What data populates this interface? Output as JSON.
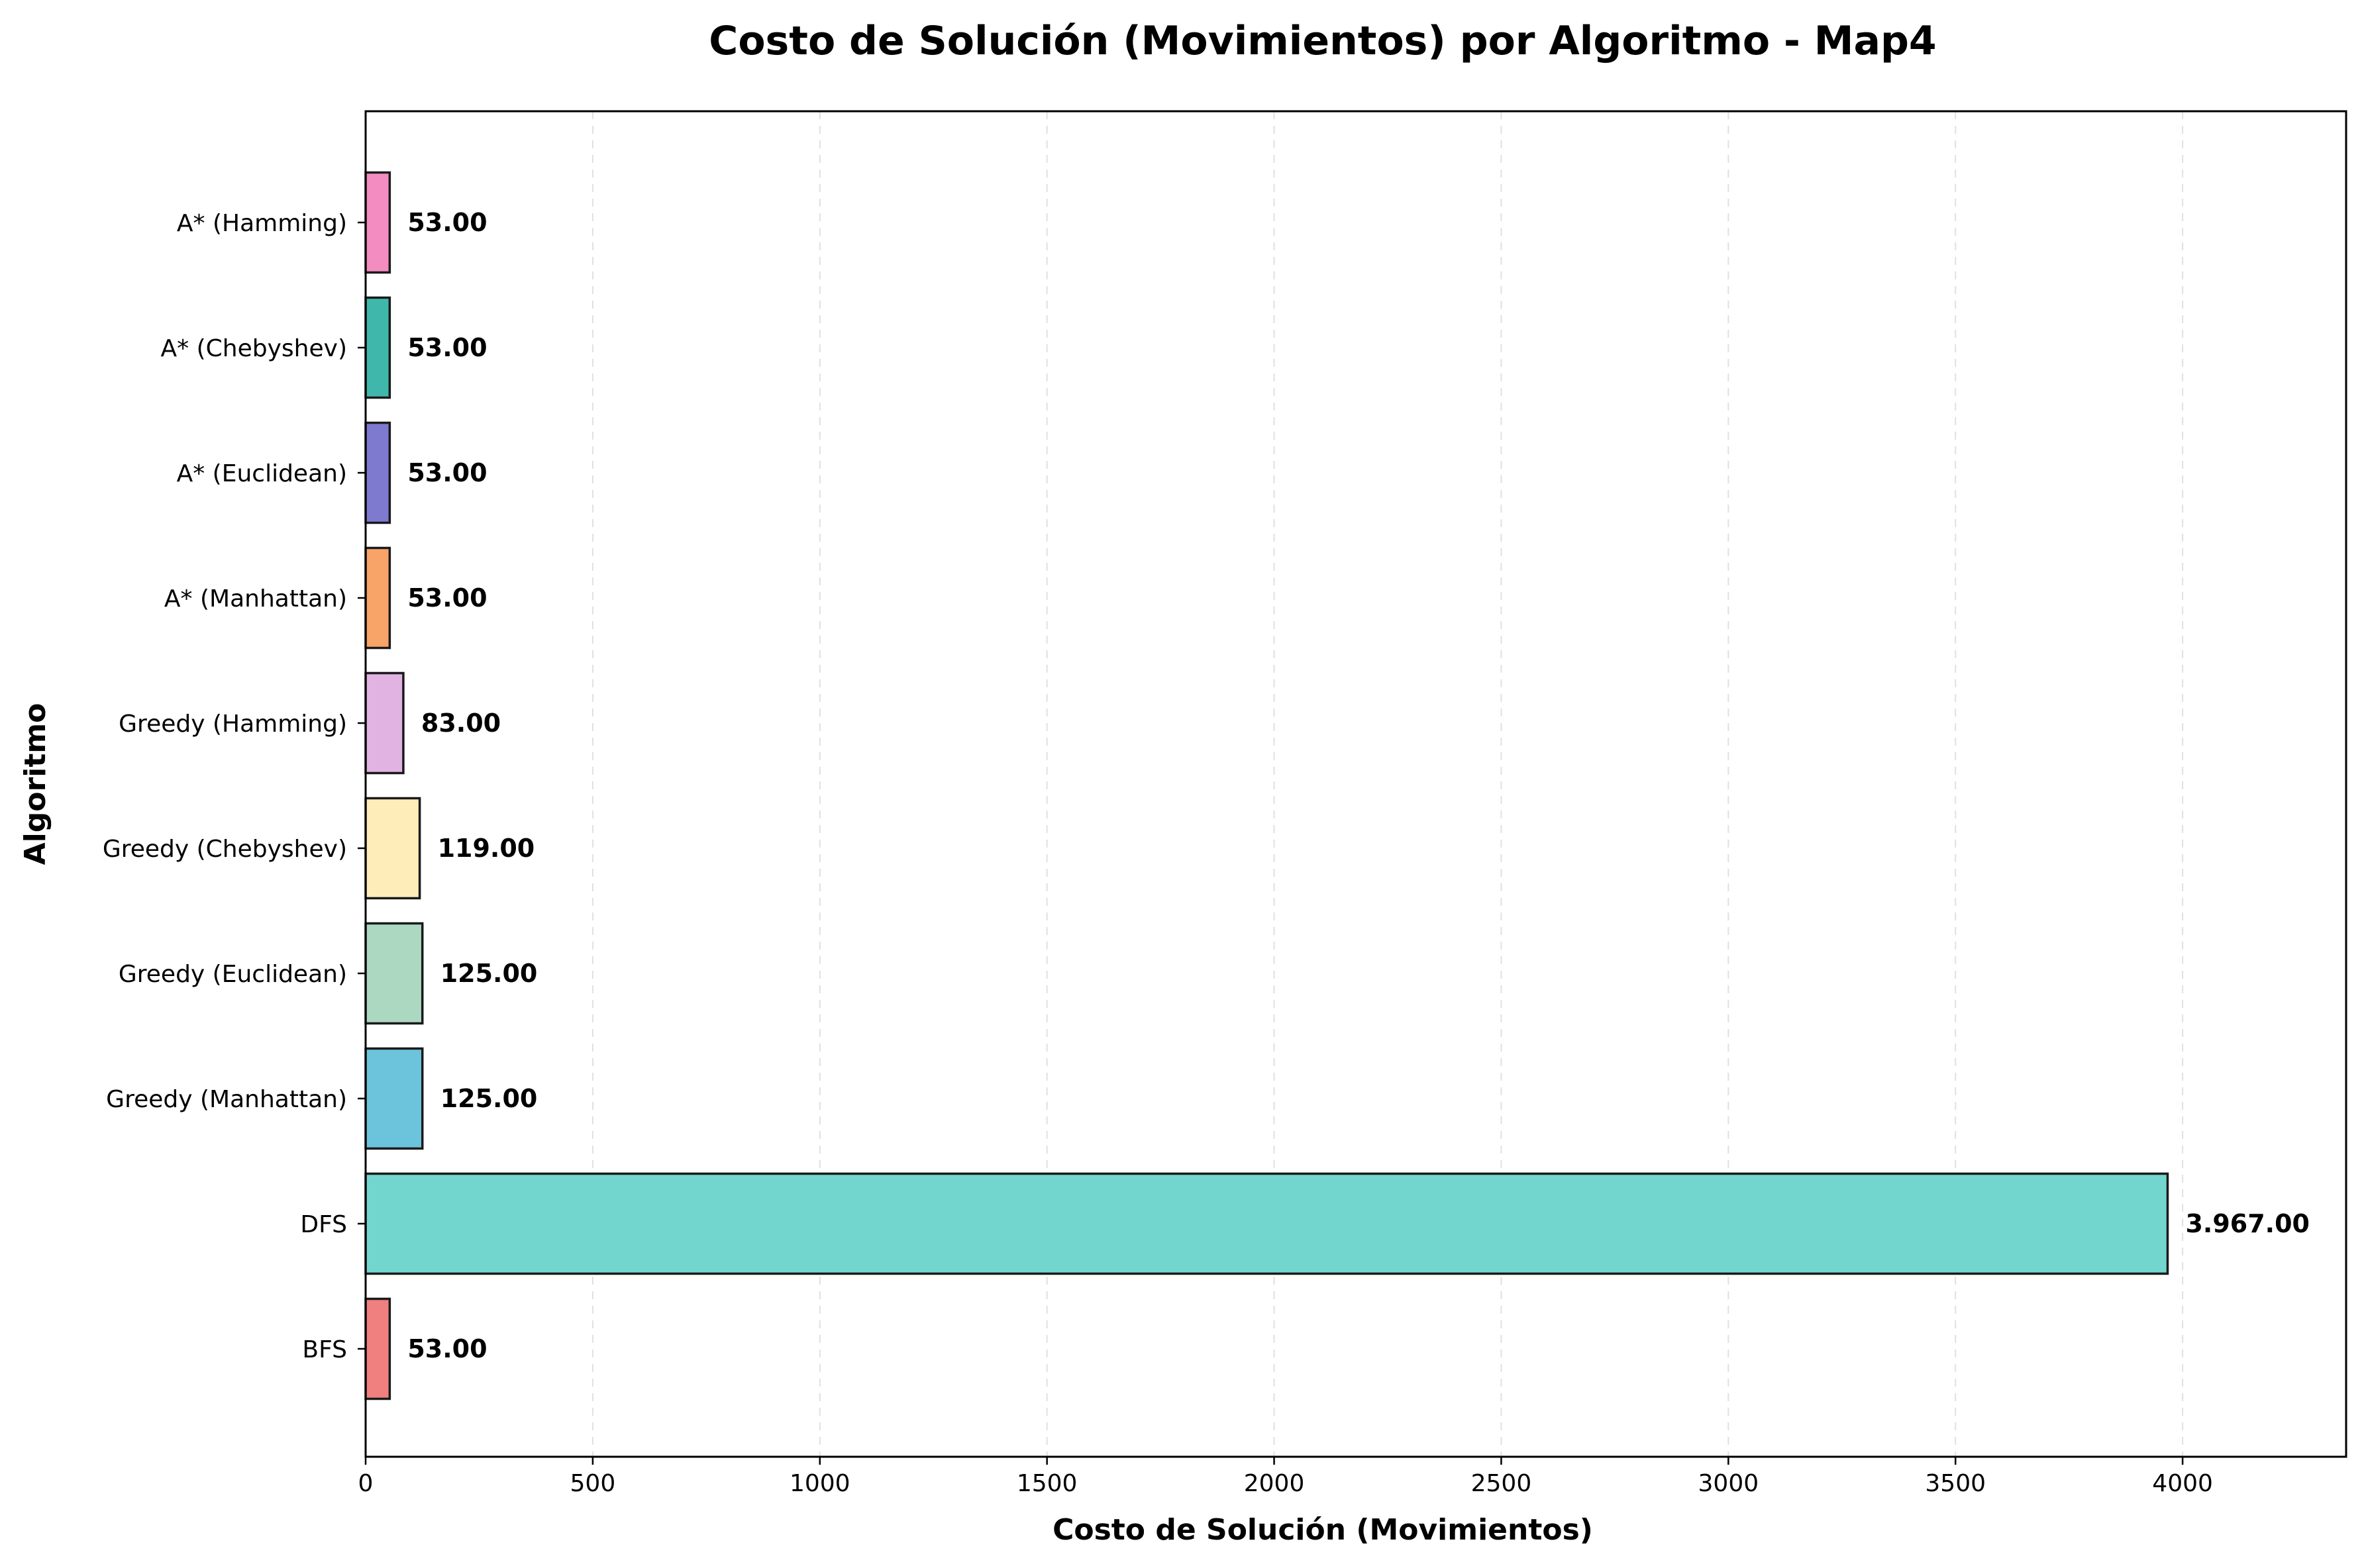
{
  "chart_data": {
    "type": "bar",
    "orientation": "horizontal",
    "title": "Costo de Solución (Movimientos) por Algoritmo - Map4",
    "xlabel": "Costo de Solución (Movimientos)",
    "ylabel": "Algoritmo",
    "xlim": [
      0,
      4360
    ],
    "xticks": [
      0,
      500,
      1000,
      1500,
      2000,
      2500,
      3000,
      3500,
      4000
    ],
    "grid": "x-dashed",
    "categories": [
      "BFS",
      "DFS",
      "Greedy (Manhattan)",
      "Greedy (Euclidean)",
      "Greedy (Chebyshev)",
      "Greedy (Hamming)",
      "A* (Manhattan)",
      "A* (Euclidean)",
      "A* (Chebyshev)",
      "A* (Hamming)"
    ],
    "values": [
      53,
      3967,
      125,
      125,
      119,
      83,
      53,
      53,
      53,
      53
    ],
    "value_labels": [
      "53.00",
      "3.967.00",
      "125.00",
      "125.00",
      "119.00",
      "83.00",
      "53.00",
      "53.00",
      "53.00",
      "53.00"
    ],
    "colors": [
      "#f07f80",
      "#72d6cf",
      "#6cc4dc",
      "#acd8c2",
      "#feedb8",
      "#e0b3e3",
      "#f8a367",
      "#7e7ad0",
      "#3fb8ab",
      "#f38cc0"
    ]
  }
}
